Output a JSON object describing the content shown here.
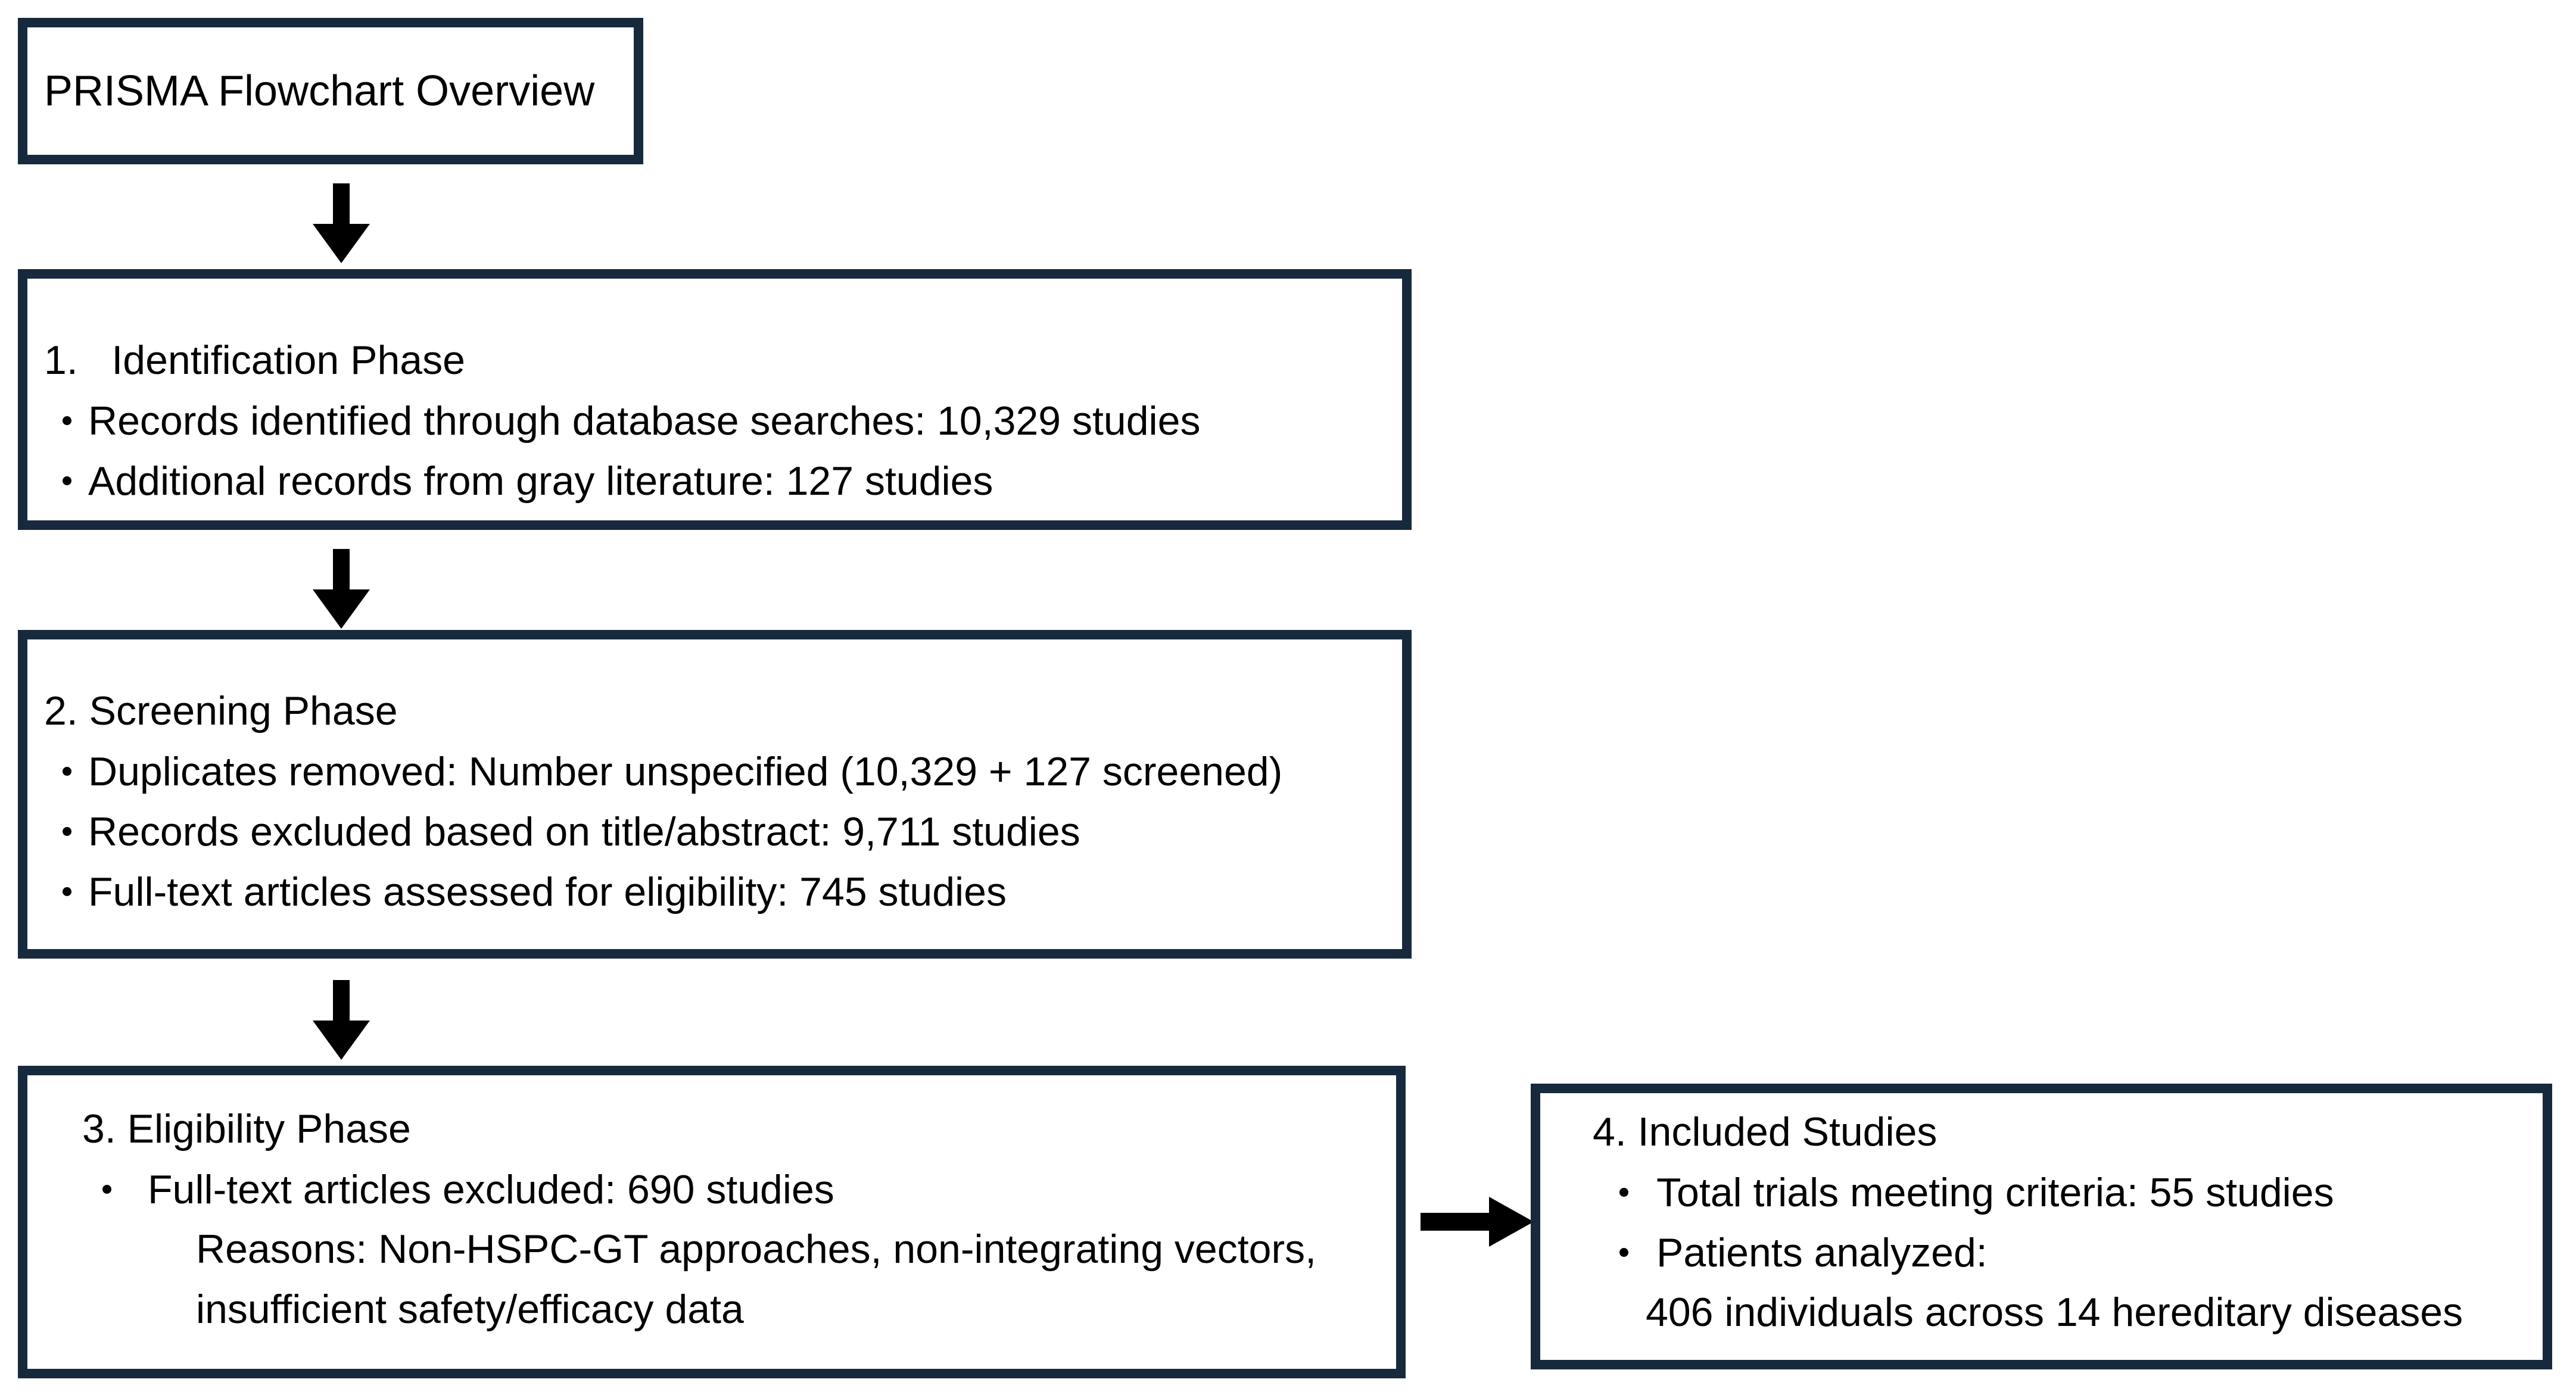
{
  "diagram": {
    "title_box": {
      "label": "PRISMA Flowchart Overview"
    },
    "phase1": {
      "heading": "1.   Identification Phase",
      "bullet1": "Records identified through database searches: 10,329 studies",
      "bullet2": "Additional records from gray literature: 127 studies"
    },
    "phase2": {
      "heading": "2. Screening Phase",
      "bullet1": "Duplicates removed: Number unspecified (10,329 + 127 screened)",
      "bullet2": "Records excluded based on title/abstract: 9,711 studies",
      "bullet3": "Full-text articles assessed for eligibility: 745 studies"
    },
    "phase3": {
      "heading": "3. Eligibility Phase",
      "bullet1": "Full-text articles excluded: 690 studies",
      "reason_line1": "Reasons: Non-HSPC-GT approaches, non-integrating vectors,",
      "reason_line2": "insufficient safety/efficacy data"
    },
    "phase4": {
      "heading": "4. Included Studies",
      "bullet1": "Total trials meeting criteria: 55 studies",
      "bullet2": "Patients analyzed:",
      "continuation": "406 individuals across 14 hereditary diseases"
    },
    "icons": {
      "down_arrow": "filled-black-down-arrow",
      "right_arrow": "filled-black-right-arrow",
      "bullet": "small-black-dot"
    },
    "colors": {
      "box_border": "#17293d",
      "box_background": "#ffffff",
      "arrow": "#000000",
      "text": "#000000",
      "page_background": "#ffffff"
    }
  }
}
